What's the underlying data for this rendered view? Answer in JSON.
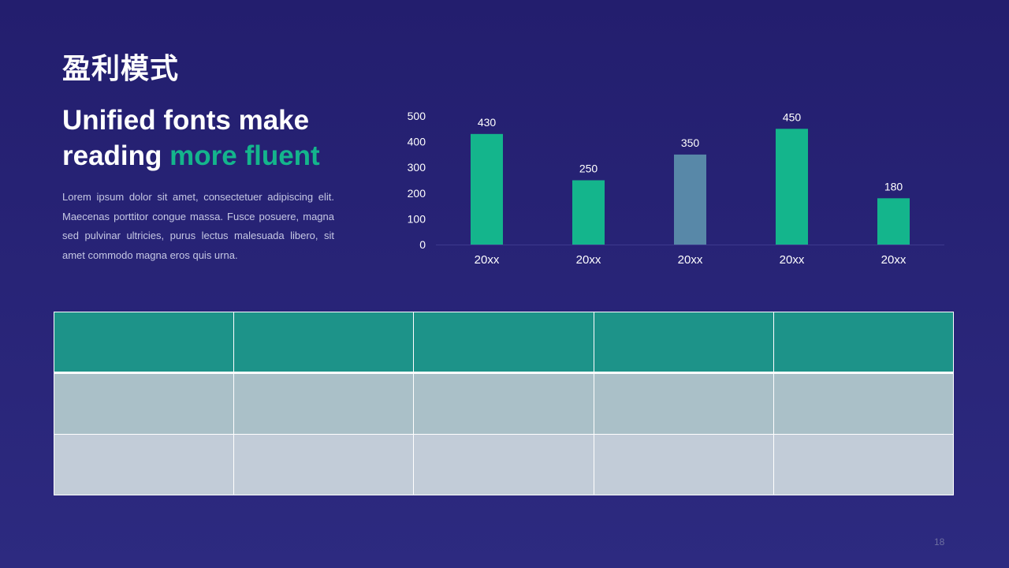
{
  "slide": {
    "title": "盈利模式",
    "headline_part1": "Unified fonts make reading ",
    "headline_accent": "more fluent",
    "body": "Lorem ipsum dolor sit amet, consectetuer adipiscing elit. Maecenas porttitor congue massa. Fusce posuere, magna sed pulvinar ultricies, purus lectus malesuada libero, sit amet commodo magna eros quis urna.",
    "page_number": "18"
  },
  "colors": {
    "background": "#231e6e",
    "accent": "#14b58c",
    "bar_default": "#14b58c",
    "bar_highlight": "#5888a8",
    "axis_text": "#ffffff"
  },
  "chart_data": {
    "type": "bar",
    "categories": [
      "20xx",
      "20xx",
      "20xx",
      "20xx",
      "20xx"
    ],
    "values": [
      430,
      250,
      350,
      450,
      180
    ],
    "highlight_index": 2,
    "title": "",
    "xlabel": "",
    "ylabel": "",
    "ylim": [
      0,
      500
    ],
    "yticks": [
      0,
      100,
      200,
      300,
      400,
      500
    ],
    "data_labels": true,
    "grid": false,
    "legend": "none"
  },
  "table": {
    "rows": [
      [
        "",
        "",
        "",
        "",
        ""
      ],
      [
        "",
        "",
        "",
        "",
        ""
      ],
      [
        "",
        "",
        "",
        "",
        ""
      ]
    ]
  }
}
